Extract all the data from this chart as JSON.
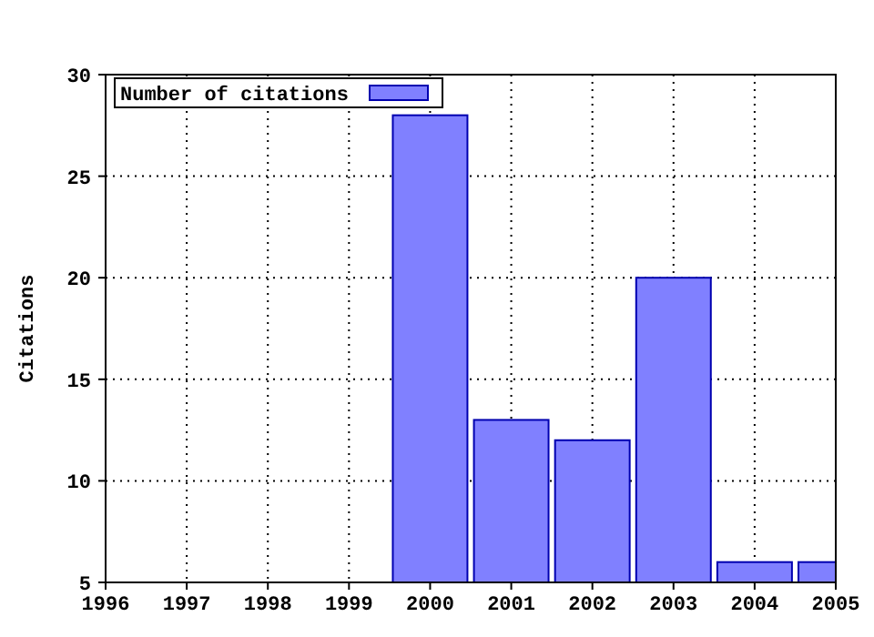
{
  "chart_data": {
    "type": "bar",
    "ylabel": "Citations",
    "x": [
      2000,
      2001,
      2002,
      2003,
      2004,
      2005
    ],
    "series": [
      {
        "name": "Number of citations",
        "color": "#8080ff",
        "values": [
          28,
          13,
          12,
          20,
          6,
          6
        ]
      }
    ],
    "xlim": [
      1996,
      2005
    ],
    "xticks": [
      1996,
      1997,
      1998,
      1999,
      2000,
      2001,
      2002,
      2003,
      2004,
      2005
    ],
    "ylim": [
      5,
      30
    ],
    "yticks": [
      5,
      10,
      15,
      20,
      25,
      30
    ],
    "grid": true,
    "legend": "top left"
  }
}
